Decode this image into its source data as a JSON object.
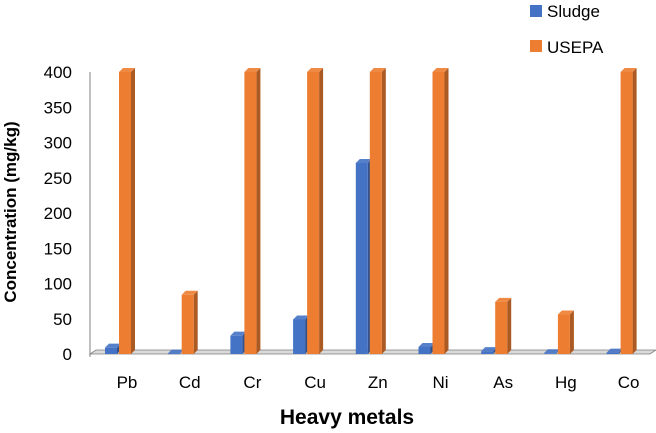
{
  "chart_data": {
    "type": "bar",
    "title": "",
    "xlabel": "Heavy metals",
    "ylabel": "Concentration (mg/kg)",
    "categories": [
      "Pb",
      "Cd",
      "Cr",
      "Cu",
      "Zn",
      "Ni",
      "As",
      "Hg",
      "Co"
    ],
    "series": [
      {
        "name": "Sludge",
        "color": "#4472C4",
        "values": [
          9,
          0.5,
          26,
          49,
          271,
          10,
          4,
          1,
          2
        ]
      },
      {
        "name": "USEPA",
        "color": "#ED7D31",
        "values": [
          400,
          84,
          400,
          400,
          400,
          400,
          74,
          56,
          400
        ]
      }
    ],
    "ylim": [
      0,
      400
    ],
    "yticks": [
      0,
      50,
      100,
      150,
      200,
      250,
      300,
      350,
      400
    ],
    "grid": false,
    "legend_position": "top-right",
    "style": "3d-clustered-column"
  }
}
